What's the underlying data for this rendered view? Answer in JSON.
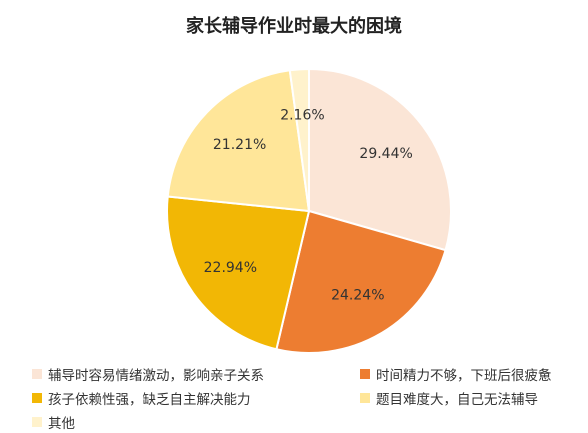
{
  "chart_data": {
    "type": "pie",
    "title": "家长辅导作业时最大的困境",
    "slices": [
      {
        "label": "辅导时容易情绪激动，影响亲子关系",
        "value": 29.44,
        "value_label": "29.44%",
        "color": "#FBE5D6"
      },
      {
        "label": "时间精力不够，下班后很疲惫",
        "value": 24.24,
        "value_label": "24.24%",
        "color": "#ED7D31"
      },
      {
        "label": "孩子依赖性强，缺乏自主解决能力",
        "value": 22.94,
        "value_label": "22.94%",
        "color": "#F2B705"
      },
      {
        "label": "题目难度大，自己无法辅导",
        "value": 21.21,
        "value_label": "21.21%",
        "color": "#FFE699"
      },
      {
        "label": "其他",
        "value": 2.16,
        "value_label": "2.16%",
        "color": "#FFF2CC"
      }
    ],
    "legend_position": "bottom",
    "start_angle": "12 o'clock",
    "direction": "clockwise"
  }
}
